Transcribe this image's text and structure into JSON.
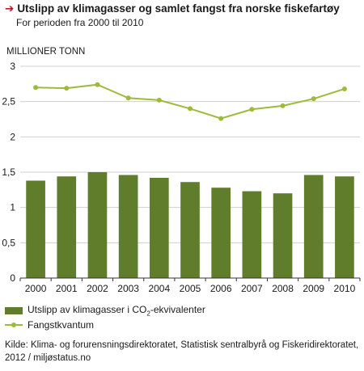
{
  "header": {
    "title": "Utslipp av klimagasser og samlet fangst fra norske fiskefartøy",
    "subtitle": "For perioden fra 2000 til 2010",
    "unit_label": "MILLIONER TONN"
  },
  "legend": {
    "bar_label_prefix": "Utslipp av klimagasser i CO",
    "bar_label_sub": "2",
    "bar_label_suffix": "-ekvivalenter",
    "line_label": "Fangstkvantum"
  },
  "source": "Kilde: Klima- og forurensningsdirektoratet, Statistisk sentralbyrå og Fiskeridirektoratet, 2012 / miljøstatus.no",
  "colors": {
    "bar": "#5f7d2a",
    "line": "#9dbb3a",
    "grid": "#cfcfcf",
    "axis": "#333333",
    "title_arrow": "#c8102e"
  },
  "chart_data": {
    "type": "bar",
    "categories": [
      "2000",
      "2001",
      "2002",
      "2003",
      "2004",
      "2005",
      "2006",
      "2007",
      "2008",
      "2009",
      "2010"
    ],
    "ylim": [
      0,
      3
    ],
    "yticks": [
      0,
      0.5,
      1,
      1.5,
      2,
      2.5,
      3
    ],
    "ytick_labels": [
      "0",
      "0,5",
      "1",
      "1,5",
      "2",
      "2,5",
      "3"
    ],
    "grid": true,
    "legend_position": "bottom",
    "series": [
      {
        "name": "Utslipp av klimagasser i CO2-ekvivalenter",
        "type": "bar",
        "values": [
          1.38,
          1.44,
          1.5,
          1.46,
          1.42,
          1.36,
          1.28,
          1.23,
          1.2,
          1.46,
          1.44
        ]
      },
      {
        "name": "Fangstkvantum",
        "type": "line",
        "values": [
          2.7,
          2.69,
          2.74,
          2.55,
          2.52,
          2.4,
          2.26,
          2.39,
          2.44,
          2.54,
          2.68
        ]
      }
    ]
  }
}
